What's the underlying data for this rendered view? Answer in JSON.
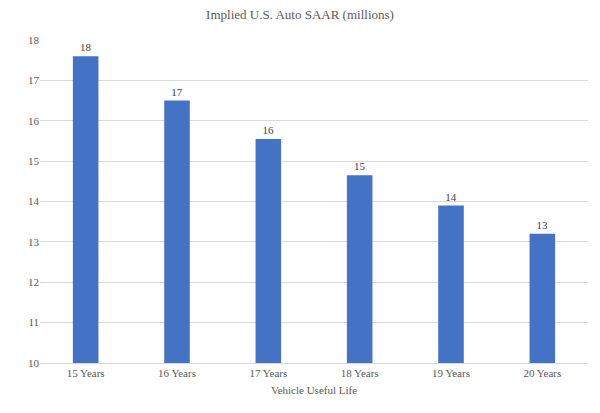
{
  "chart_data": {
    "type": "bar",
    "title": "Implied U.S. Auto SAAR (millions)",
    "xlabel": "Vehicle Useful Life",
    "categories": [
      "15 Years",
      "16 Years",
      "17 Years",
      "18 Years",
      "19 Years",
      "20 Years"
    ],
    "values": [
      17.6,
      16.5,
      15.55,
      14.65,
      13.9,
      13.2
    ],
    "value_labels": [
      "18",
      "17",
      "16",
      "15",
      "14",
      "13"
    ],
    "data_labels": true,
    "color": "#4472c4",
    "ylim": [
      10,
      18
    ],
    "yticks": [
      10,
      11,
      12,
      13,
      14,
      15,
      16,
      17,
      18
    ],
    "grid": true
  }
}
